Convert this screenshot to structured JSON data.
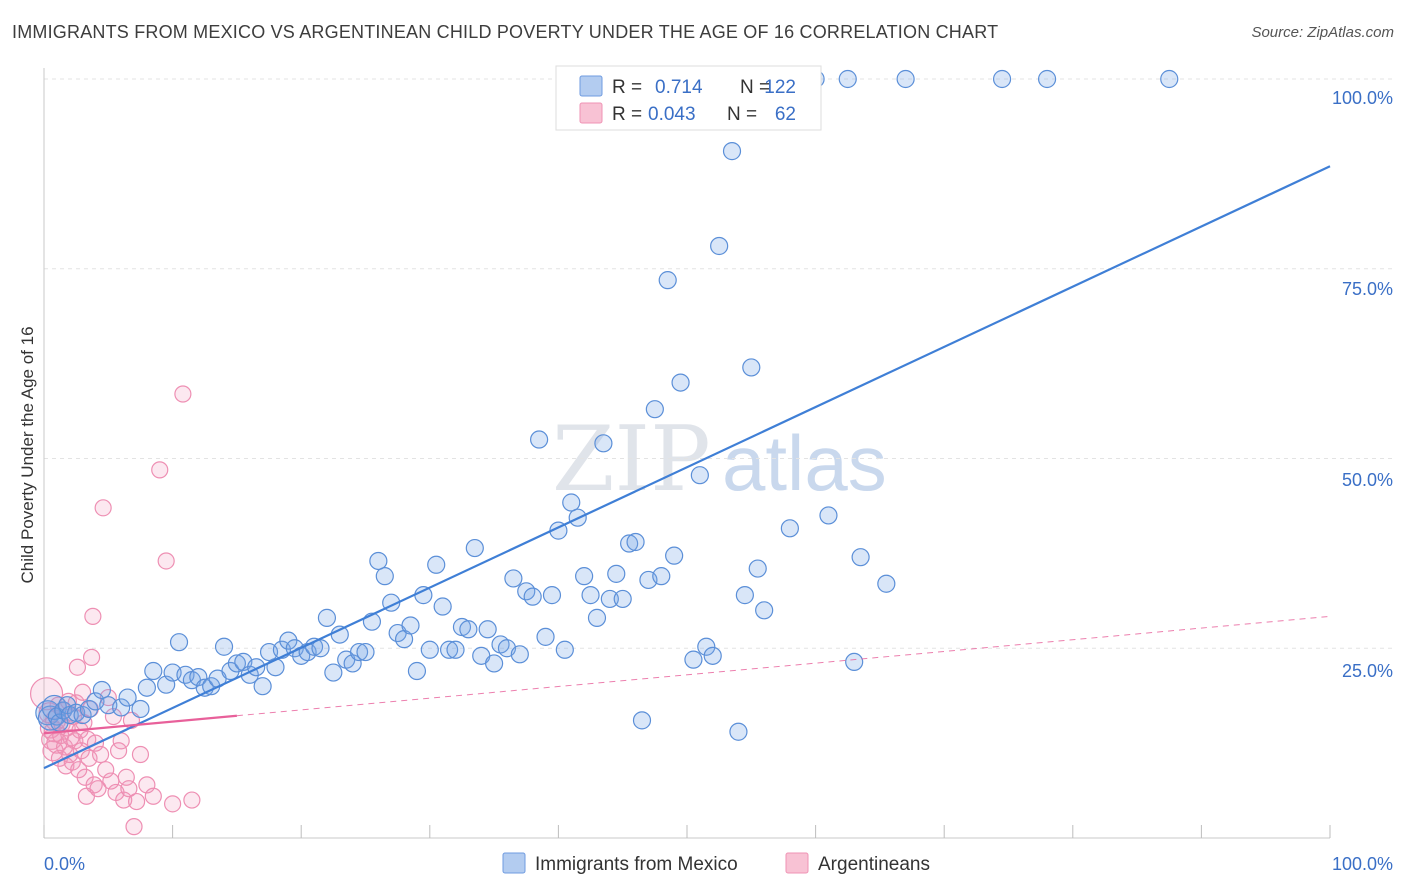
{
  "title": "IMMIGRANTS FROM MEXICO VS ARGENTINEAN CHILD POVERTY UNDER THE AGE OF 16 CORRELATION CHART",
  "source": "Source: ZipAtlas.com",
  "watermark": {
    "zip": "ZIP",
    "atlas": "atlas"
  },
  "colors": {
    "blue": "#3f7fd6",
    "blue_fill": "rgba(120,165,230,0.28)",
    "blue_stroke": "#5b8fd8",
    "pink": "#e8609a",
    "pink_fill": "rgba(240,150,185,0.22)",
    "pink_stroke": "#ee8fb3",
    "grid": "#e3e3e3",
    "tick_text": "#3a6fc6"
  },
  "legend": {
    "r_label": "R =",
    "n_label": "N =",
    "series": [
      {
        "r": "0.714",
        "n": "122"
      },
      {
        "r": "0.043",
        "n": "62"
      }
    ]
  },
  "chart_data": {
    "type": "scatter",
    "title": "IMMIGRANTS FROM MEXICO VS ARGENTINEAN CHILD POVERTY UNDER THE AGE OF 16 CORRELATION CHART",
    "xlabel": "",
    "ylabel": "Child Poverty Under the Age of 16",
    "xlim": [
      0,
      100
    ],
    "ylim": [
      0,
      100
    ],
    "x_tick_labels": [
      "0.0%",
      "100.0%"
    ],
    "y_ticks": [
      25,
      50,
      75,
      100
    ],
    "y_tick_labels": [
      "25.0%",
      "50.0%",
      "75.0%",
      "100.0%"
    ],
    "series": [
      {
        "name": "Immigrants from Mexico",
        "color": "#3f7fd6",
        "r": 0.714,
        "n": 122,
        "trend": {
          "x": [
            0,
            100
          ],
          "y": [
            9.2,
            88.5
          ],
          "dashed_from": null
        },
        "points": [
          [
            0.3,
            16.5
          ],
          [
            0.5,
            15.8
          ],
          [
            0.8,
            17.2
          ],
          [
            1.0,
            16.0
          ],
          [
            1.2,
            15.2
          ],
          [
            1.5,
            16.8
          ],
          [
            1.8,
            17.5
          ],
          [
            2.0,
            16.2
          ],
          [
            2.5,
            16.5
          ],
          [
            3.0,
            16.2
          ],
          [
            3.5,
            17.0
          ],
          [
            4.0,
            18.0
          ],
          [
            4.5,
            19.5
          ],
          [
            5.0,
            17.5
          ],
          [
            6.0,
            17.2
          ],
          [
            6.5,
            18.5
          ],
          [
            7.5,
            17.0
          ],
          [
            8.0,
            19.8
          ],
          [
            8.5,
            22.0
          ],
          [
            9.5,
            20.2
          ],
          [
            10.0,
            21.8
          ],
          [
            10.5,
            25.8
          ],
          [
            11.0,
            21.5
          ],
          [
            11.5,
            20.8
          ],
          [
            12.0,
            21.2
          ],
          [
            12.5,
            19.8
          ],
          [
            13.0,
            20.0
          ],
          [
            13.5,
            21.0
          ],
          [
            14.0,
            25.2
          ],
          [
            14.5,
            22.0
          ],
          [
            15.0,
            23.0
          ],
          [
            15.5,
            23.2
          ],
          [
            16.0,
            21.5
          ],
          [
            16.5,
            22.5
          ],
          [
            17.0,
            20.0
          ],
          [
            17.5,
            24.5
          ],
          [
            18.0,
            22.5
          ],
          [
            18.5,
            24.8
          ],
          [
            19.0,
            26.0
          ],
          [
            19.5,
            25.0
          ],
          [
            20.0,
            24.0
          ],
          [
            20.5,
            24.5
          ],
          [
            21.0,
            25.2
          ],
          [
            21.5,
            25.0
          ],
          [
            22.0,
            29.0
          ],
          [
            22.5,
            21.8
          ],
          [
            23.0,
            26.8
          ],
          [
            23.5,
            23.5
          ],
          [
            24.0,
            23.0
          ],
          [
            24.5,
            24.5
          ],
          [
            25.0,
            24.5
          ],
          [
            25.5,
            28.5
          ],
          [
            26.0,
            36.5
          ],
          [
            26.5,
            34.5
          ],
          [
            27.0,
            31.0
          ],
          [
            27.5,
            27.0
          ],
          [
            28.0,
            26.2
          ],
          [
            28.5,
            28.0
          ],
          [
            29.0,
            22.0
          ],
          [
            29.5,
            32.0
          ],
          [
            30.0,
            24.8
          ],
          [
            30.5,
            36.0
          ],
          [
            31.0,
            30.5
          ],
          [
            31.5,
            24.8
          ],
          [
            32.0,
            24.8
          ],
          [
            32.5,
            27.8
          ],
          [
            33.0,
            27.5
          ],
          [
            33.5,
            38.2
          ],
          [
            34.0,
            24.0
          ],
          [
            34.5,
            27.5
          ],
          [
            35.0,
            23.0
          ],
          [
            35.5,
            25.5
          ],
          [
            36.0,
            25.0
          ],
          [
            36.5,
            34.2
          ],
          [
            37.0,
            24.2
          ],
          [
            37.5,
            32.5
          ],
          [
            38.0,
            31.8
          ],
          [
            38.5,
            52.5
          ],
          [
            39.0,
            26.5
          ],
          [
            39.5,
            32.0
          ],
          [
            40.0,
            40.5
          ],
          [
            40.5,
            24.8
          ],
          [
            41.0,
            44.2
          ],
          [
            41.5,
            42.2
          ],
          [
            42.0,
            34.5
          ],
          [
            42.5,
            32.0
          ],
          [
            43.0,
            29.0
          ],
          [
            43.5,
            52.0
          ],
          [
            44.0,
            31.5
          ],
          [
            44.5,
            34.8
          ],
          [
            45.0,
            31.5
          ],
          [
            45.5,
            38.8
          ],
          [
            46.0,
            39.0
          ],
          [
            46.5,
            15.5
          ],
          [
            47.0,
            34.0
          ],
          [
            47.5,
            56.5
          ],
          [
            48.0,
            34.5
          ],
          [
            48.5,
            73.5
          ],
          [
            49.0,
            37.2
          ],
          [
            49.5,
            60.0
          ],
          [
            50.5,
            23.5
          ],
          [
            51.0,
            47.8
          ],
          [
            51.5,
            25.2
          ],
          [
            52.0,
            24.0
          ],
          [
            52.5,
            78.0
          ],
          [
            53.5,
            90.5
          ],
          [
            54.0,
            14.0
          ],
          [
            54.5,
            32.0
          ],
          [
            55.0,
            62.0
          ],
          [
            55.5,
            35.5
          ],
          [
            56.0,
            30.0
          ],
          [
            58.0,
            40.8
          ],
          [
            60.0,
            100.0
          ],
          [
            61.0,
            42.5
          ],
          [
            62.5,
            100.0
          ],
          [
            63.0,
            23.2
          ],
          [
            63.5,
            37.0
          ],
          [
            65.5,
            33.5
          ],
          [
            67.0,
            100.0
          ],
          [
            74.5,
            100.0
          ],
          [
            78.0,
            100.0
          ],
          [
            87.5,
            100.0
          ]
        ]
      },
      {
        "name": "Argentineans",
        "color": "#e8609a",
        "r": 0.043,
        "n": 62,
        "trend": {
          "x": [
            0,
            100
          ],
          "y": [
            13.8,
            29.2
          ],
          "dashed_from": 15
        },
        "points": [
          [
            0.2,
            19.0
          ],
          [
            0.4,
            16.5
          ],
          [
            0.5,
            14.5
          ],
          [
            0.6,
            13.0
          ],
          [
            0.7,
            11.5
          ],
          [
            0.8,
            14.0
          ],
          [
            0.9,
            15.5
          ],
          [
            1.0,
            12.5
          ],
          [
            1.1,
            17.5
          ],
          [
            1.2,
            10.5
          ],
          [
            1.3,
            13.5
          ],
          [
            1.4,
            15.0
          ],
          [
            1.5,
            16.8
          ],
          [
            1.6,
            12.0
          ],
          [
            1.7,
            9.5
          ],
          [
            1.8,
            14.5
          ],
          [
            1.9,
            18.0
          ],
          [
            2.0,
            11.0
          ],
          [
            2.1,
            13.2
          ],
          [
            2.2,
            10.0
          ],
          [
            2.3,
            16.0
          ],
          [
            2.4,
            12.8
          ],
          [
            2.5,
            17.8
          ],
          [
            2.6,
            22.5
          ],
          [
            2.7,
            9.0
          ],
          [
            2.8,
            14.2
          ],
          [
            2.9,
            11.5
          ],
          [
            3.0,
            19.2
          ],
          [
            3.1,
            15.2
          ],
          [
            3.2,
            8.0
          ],
          [
            3.3,
            5.5
          ],
          [
            3.4,
            13.0
          ],
          [
            3.5,
            10.5
          ],
          [
            3.6,
            17.0
          ],
          [
            3.7,
            23.8
          ],
          [
            3.8,
            29.2
          ],
          [
            3.9,
            7.0
          ],
          [
            4.0,
            12.5
          ],
          [
            4.2,
            6.5
          ],
          [
            4.4,
            11.0
          ],
          [
            4.6,
            43.5
          ],
          [
            4.8,
            9.0
          ],
          [
            5.0,
            18.5
          ],
          [
            5.2,
            7.5
          ],
          [
            5.4,
            16.0
          ],
          [
            5.6,
            6.0
          ],
          [
            5.8,
            11.5
          ],
          [
            6.0,
            12.8
          ],
          [
            6.2,
            5.0
          ],
          [
            6.4,
            8.0
          ],
          [
            6.6,
            6.5
          ],
          [
            6.8,
            15.5
          ],
          [
            7.0,
            1.5
          ],
          [
            7.2,
            4.8
          ],
          [
            7.5,
            11.0
          ],
          [
            8.0,
            7.0
          ],
          [
            8.5,
            5.5
          ],
          [
            9.0,
            48.5
          ],
          [
            9.5,
            36.5
          ],
          [
            10.0,
            4.5
          ],
          [
            10.8,
            58.5
          ],
          [
            11.5,
            5.0
          ]
        ]
      }
    ]
  },
  "bottom_legend": [
    "Immigrants from Mexico",
    "Argentineans"
  ]
}
